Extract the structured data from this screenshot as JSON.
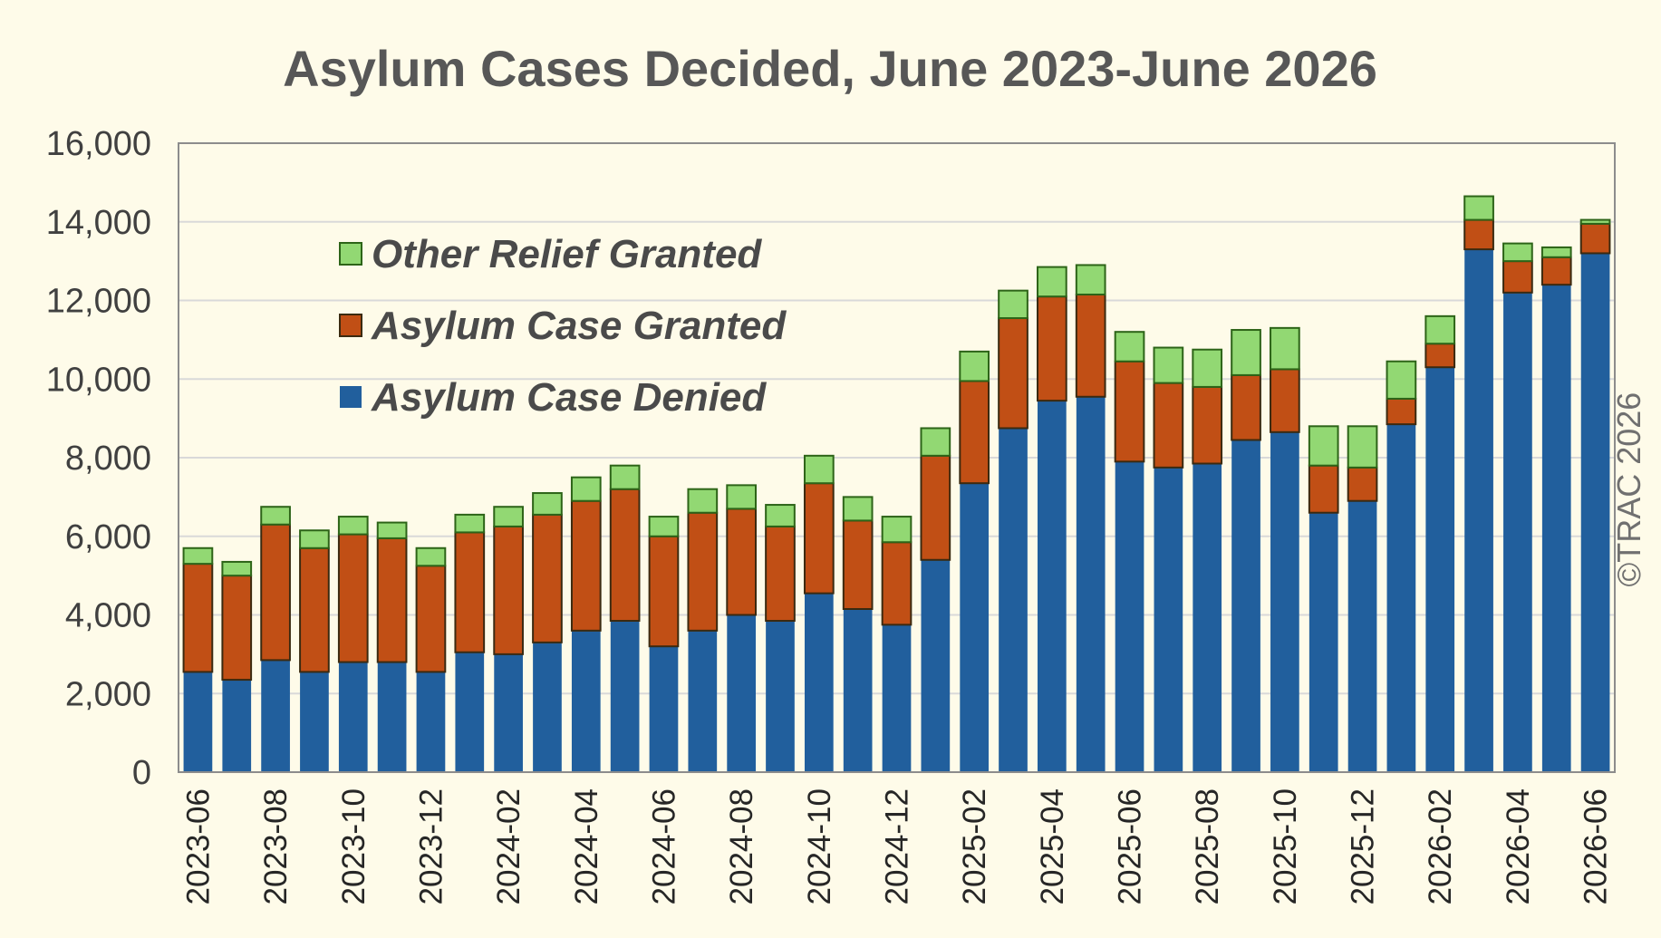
{
  "chart_data": {
    "type": "bar",
    "stacked": true,
    "title": "Asylum Cases Decided, June 2023-June 2026",
    "xlabel": "",
    "ylabel": "",
    "ylim": [
      0,
      16000
    ],
    "yticks": [
      "0",
      "2,000",
      "4,000",
      "6,000",
      "8,000",
      "10,000",
      "12,000",
      "14,000",
      "16,000"
    ],
    "grid": true,
    "legend_position": "top-left",
    "copyright": "©TRAC 2026",
    "categories": [
      "2023-06",
      "2023-07",
      "2023-08",
      "2023-09",
      "2023-10",
      "2023-11",
      "2023-12",
      "2024-01",
      "2024-02",
      "2024-03",
      "2024-04",
      "2024-05",
      "2024-06",
      "2024-07",
      "2024-08",
      "2024-09",
      "2024-10",
      "2024-11",
      "2024-12",
      "2025-01",
      "2025-02",
      "2025-03",
      "2025-04",
      "2025-05",
      "2025-06",
      "2025-07",
      "2025-08",
      "2025-09",
      "2025-10",
      "2025-11",
      "2025-12",
      "2026-01",
      "2026-02",
      "2026-03",
      "2026-04",
      "2026-05",
      "2026-06"
    ],
    "tick_labels": [
      "2023-06",
      "2023-08",
      "2023-10",
      "2023-12",
      "2024-02",
      "2024-04",
      "2024-06",
      "2024-08",
      "2024-10",
      "2024-12",
      "2025-02",
      "2025-04",
      "2025-06",
      "2025-08",
      "2025-10",
      "2025-12",
      "2026-02",
      "2026-04",
      "2026-06"
    ],
    "legend": [
      {
        "label": "Other Relief Granted",
        "color": "#92d873"
      },
      {
        "label": "Asylum Case Granted",
        "color": "#c14f15"
      },
      {
        "label": "Asylum Case Denied",
        "color": "#215f9d"
      }
    ],
    "series": [
      {
        "name": "Asylum Case Denied",
        "color": "#215f9d",
        "values": [
          2550,
          2350,
          2850,
          2550,
          2800,
          2800,
          2550,
          3050,
          3000,
          3300,
          3600,
          3850,
          3200,
          3600,
          4000,
          3850,
          4550,
          4150,
          3750,
          5400,
          7350,
          8750,
          9450,
          9550,
          7900,
          7750,
          7850,
          8450,
          8650,
          6600,
          6900,
          8850,
          10300,
          13300,
          12200,
          12400,
          13200
        ]
      },
      {
        "name": "Asylum Case Granted",
        "color": "#c14f15",
        "values": [
          2750,
          2650,
          3450,
          3150,
          3250,
          3150,
          2700,
          3050,
          3250,
          3250,
          3300,
          3350,
          2800,
          3000,
          2700,
          2400,
          2800,
          2250,
          2100,
          2650,
          2600,
          2800,
          2650,
          2600,
          2550,
          2150,
          1950,
          1650,
          1600,
          1200,
          850,
          650,
          600,
          750,
          800,
          700,
          750
        ]
      },
      {
        "name": "Other Relief Granted",
        "color": "#92d873",
        "values": [
          400,
          350,
          450,
          450,
          450,
          400,
          450,
          450,
          500,
          550,
          600,
          600,
          500,
          600,
          600,
          550,
          700,
          600,
          650,
          700,
          750,
          700,
          750,
          750,
          750,
          900,
          950,
          1150,
          1050,
          1000,
          1050,
          950,
          700,
          600,
          450,
          250,
          100
        ]
      }
    ]
  }
}
